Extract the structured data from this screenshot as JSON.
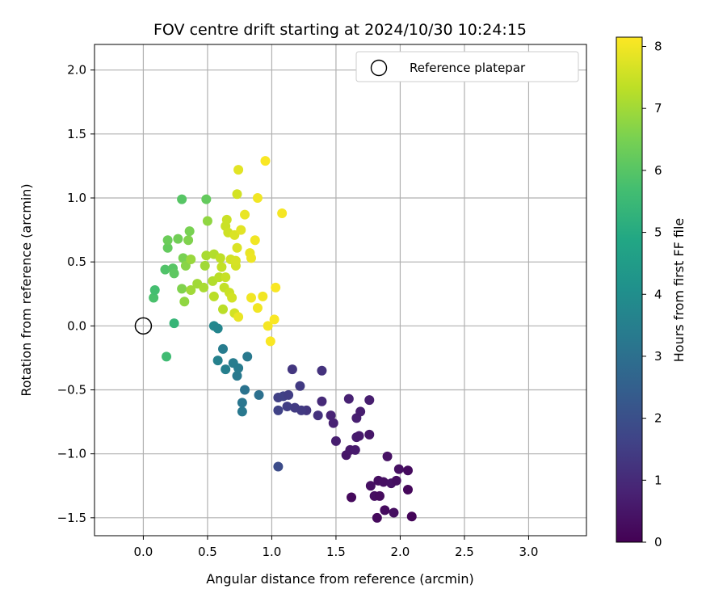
{
  "chart_data": {
    "type": "scatter",
    "title": "FOV centre drift starting at 2024/10/30 10:24:15",
    "xlabel": "Angular distance from reference (arcmin)",
    "ylabel": "Rotation from reference (arcmin)",
    "xlim": [
      -0.38,
      3.45
    ],
    "ylim": [
      -1.64,
      2.2
    ],
    "xticks": [
      0.0,
      0.5,
      1.0,
      1.5,
      2.0,
      2.5,
      3.0
    ],
    "xtick_labels": [
      "0.0",
      "0.5",
      "1.0",
      "1.5",
      "2.0",
      "2.5",
      "3.0"
    ],
    "yticks": [
      -1.5,
      -1.0,
      -0.5,
      0.0,
      0.5,
      1.0,
      1.5,
      2.0
    ],
    "ytick_labels": [
      "−1.5",
      "−1.0",
      "−0.5",
      "0.0",
      "0.5",
      "1.0",
      "1.5",
      "2.0"
    ],
    "grid": true,
    "legend": {
      "placement": "top-right",
      "entries": [
        "Reference platepar"
      ]
    },
    "reference_point": {
      "x": 0.0,
      "y": 0.0,
      "marker": "open-circle",
      "color": "#000000"
    },
    "colorbar": {
      "label": "Hours from first FF file",
      "range": [
        0,
        8.15
      ],
      "ticks": [
        0,
        1,
        2,
        3,
        4,
        5,
        6,
        7,
        8
      ],
      "tick_labels": [
        "0",
        "1",
        "2",
        "3",
        "4",
        "5",
        "6",
        "7",
        "8"
      ],
      "colormap": "viridis"
    },
    "points": [
      [
        1.82,
        -1.5,
        0.2
      ],
      [
        1.88,
        -1.44,
        0.25
      ],
      [
        2.09,
        -1.49,
        0.1
      ],
      [
        1.95,
        -1.46,
        0.3
      ],
      [
        2.06,
        -1.28,
        0.15
      ],
      [
        1.62,
        -1.34,
        0.2
      ],
      [
        1.8,
        -1.33,
        0.3
      ],
      [
        1.84,
        -1.33,
        0.25
      ],
      [
        1.77,
        -1.25,
        0.35
      ],
      [
        1.83,
        -1.21,
        0.3
      ],
      [
        1.87,
        -1.22,
        0.35
      ],
      [
        1.93,
        -1.23,
        0.4
      ],
      [
        1.97,
        -1.21,
        0.3
      ],
      [
        1.99,
        -1.12,
        0.35
      ],
      [
        2.06,
        -1.13,
        0.25
      ],
      [
        1.9,
        -1.02,
        0.4
      ],
      [
        1.58,
        -1.01,
        0.5
      ],
      [
        1.61,
        -0.97,
        0.55
      ],
      [
        1.65,
        -0.97,
        0.6
      ],
      [
        1.5,
        -0.9,
        0.7
      ],
      [
        1.66,
        -0.87,
        0.65
      ],
      [
        1.68,
        -0.86,
        0.6
      ],
      [
        1.76,
        -0.85,
        0.5
      ],
      [
        1.48,
        -0.76,
        0.8
      ],
      [
        1.66,
        -0.72,
        0.75
      ],
      [
        1.69,
        -0.67,
        0.7
      ],
      [
        1.46,
        -0.7,
        0.85
      ],
      [
        1.6,
        -0.57,
        0.8
      ],
      [
        1.76,
        -0.58,
        0.7
      ],
      [
        1.39,
        -0.59,
        1.0
      ],
      [
        1.36,
        -0.7,
        1.2
      ],
      [
        1.27,
        -0.66,
        1.3
      ],
      [
        1.23,
        -0.66,
        1.4
      ],
      [
        1.18,
        -0.64,
        1.45
      ],
      [
        1.12,
        -0.63,
        1.5
      ],
      [
        1.05,
        -0.66,
        1.6
      ],
      [
        1.05,
        -0.56,
        1.55
      ],
      [
        1.09,
        -0.55,
        1.6
      ],
      [
        1.13,
        -0.54,
        1.5
      ],
      [
        1.22,
        -0.47,
        1.4
      ],
      [
        1.16,
        -0.34,
        1.3
      ],
      [
        1.39,
        -0.35,
        1.2
      ],
      [
        1.05,
        -1.1,
        1.9
      ],
      [
        0.9,
        -0.54,
        3.0
      ],
      [
        0.77,
        -0.6,
        3.2
      ],
      [
        0.77,
        -0.67,
        3.25
      ],
      [
        0.79,
        -0.5,
        3.1
      ],
      [
        0.73,
        -0.39,
        3.3
      ],
      [
        0.74,
        -0.33,
        3.35
      ],
      [
        0.7,
        -0.29,
        3.4
      ],
      [
        0.64,
        -0.34,
        3.5
      ],
      [
        0.58,
        -0.27,
        3.55
      ],
      [
        0.62,
        -0.18,
        3.4
      ],
      [
        0.81,
        -0.24,
        3.3
      ],
      [
        0.55,
        0.0,
        3.8
      ],
      [
        0.58,
        -0.02,
        3.7
      ],
      [
        0.18,
        -0.24,
        5.6
      ],
      [
        0.24,
        0.02,
        5.4
      ],
      [
        0.08,
        0.22,
        5.8
      ],
      [
        0.09,
        0.28,
        5.7
      ],
      [
        0.17,
        0.44,
        5.9
      ],
      [
        0.23,
        0.45,
        6.0
      ],
      [
        0.24,
        0.41,
        6.1
      ],
      [
        0.19,
        0.61,
        6.2
      ],
      [
        0.19,
        0.67,
        6.3
      ],
      [
        0.27,
        0.68,
        6.4
      ],
      [
        0.31,
        0.53,
        6.5
      ],
      [
        0.3,
        0.29,
        6.6
      ],
      [
        0.32,
        0.19,
        6.8
      ],
      [
        0.33,
        0.47,
        6.7
      ],
      [
        0.35,
        0.67,
        6.6
      ],
      [
        0.36,
        0.74,
        6.5
      ],
      [
        0.37,
        0.52,
        6.9
      ],
      [
        0.37,
        0.28,
        7.0
      ],
      [
        0.42,
        0.33,
        7.0
      ],
      [
        0.47,
        0.3,
        7.1
      ],
      [
        0.48,
        0.47,
        7.0
      ],
      [
        0.49,
        0.55,
        7.1
      ],
      [
        0.49,
        0.99,
        6.2
      ],
      [
        0.3,
        0.99,
        6.0
      ],
      [
        0.5,
        0.82,
        6.8
      ],
      [
        0.54,
        0.35,
        7.2
      ],
      [
        0.55,
        0.56,
        7.2
      ],
      [
        0.55,
        0.23,
        7.3
      ],
      [
        0.59,
        0.38,
        7.3
      ],
      [
        0.6,
        0.53,
        7.35
      ],
      [
        0.61,
        0.46,
        7.4
      ],
      [
        0.62,
        0.13,
        7.3
      ],
      [
        0.63,
        0.3,
        7.4
      ],
      [
        0.64,
        0.38,
        7.45
      ],
      [
        0.64,
        0.78,
        7.5
      ],
      [
        0.65,
        0.83,
        7.5
      ],
      [
        0.66,
        0.73,
        7.55
      ],
      [
        0.67,
        0.26,
        7.5
      ],
      [
        0.68,
        0.52,
        7.6
      ],
      [
        0.69,
        0.22,
        7.6
      ],
      [
        0.71,
        0.1,
        7.6
      ],
      [
        0.71,
        0.71,
        7.7
      ],
      [
        0.72,
        0.47,
        7.6
      ],
      [
        0.72,
        0.51,
        7.65
      ],
      [
        0.73,
        0.61,
        7.7
      ],
      [
        0.73,
        1.03,
        7.6
      ],
      [
        0.74,
        1.22,
        7.8
      ],
      [
        0.74,
        0.07,
        7.9
      ],
      [
        0.76,
        0.75,
        7.8
      ],
      [
        0.79,
        0.87,
        7.9
      ],
      [
        0.83,
        0.57,
        7.9
      ],
      [
        0.84,
        0.53,
        7.95
      ],
      [
        0.84,
        0.22,
        8.0
      ],
      [
        0.87,
        0.67,
        8.0
      ],
      [
        0.89,
        0.14,
        8.0
      ],
      [
        0.89,
        1.0,
        8.0
      ],
      [
        0.93,
        0.23,
        8.0
      ],
      [
        0.95,
        1.29,
        8.1
      ],
      [
        0.97,
        0.0,
        8.05
      ],
      [
        0.99,
        -0.12,
        8.1
      ],
      [
        1.02,
        0.05,
        8.1
      ],
      [
        1.03,
        0.3,
        8.1
      ],
      [
        1.08,
        0.88,
        8.05
      ]
    ]
  }
}
